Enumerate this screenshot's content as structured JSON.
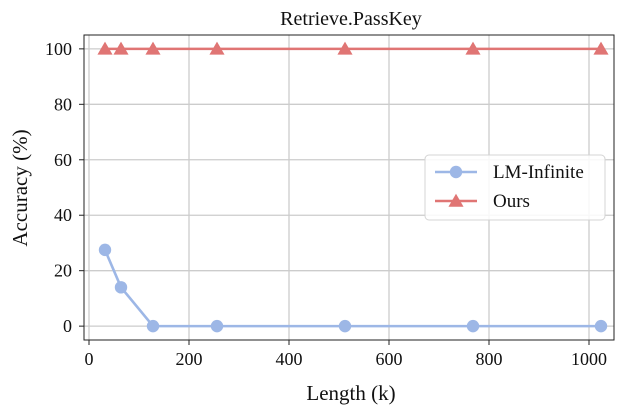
{
  "chart_data": {
    "type": "line",
    "title": "Retrieve.PassKey",
    "xlabel": "Length (k)",
    "ylabel": "Accuracy (%)",
    "xlim": [
      -10,
      1050
    ],
    "ylim": [
      -5,
      105
    ],
    "xticks": [
      0,
      200,
      400,
      600,
      800,
      1000
    ],
    "yticks": [
      0,
      20,
      40,
      60,
      80,
      100
    ],
    "grid": true,
    "legend_position": "center-right",
    "series": [
      {
        "name": "LM-Infinite",
        "color": "#9db7e6",
        "marker": "circle",
        "x": [
          32,
          64,
          128,
          256,
          512,
          768,
          1024
        ],
        "y": [
          27.5,
          14,
          0,
          0,
          0,
          0,
          0
        ]
      },
      {
        "name": "Ours",
        "color": "#e07574",
        "marker": "triangle",
        "x": [
          32,
          64,
          128,
          256,
          512,
          768,
          1024
        ],
        "y": [
          100,
          100,
          100,
          100,
          100,
          100,
          100
        ]
      }
    ]
  }
}
